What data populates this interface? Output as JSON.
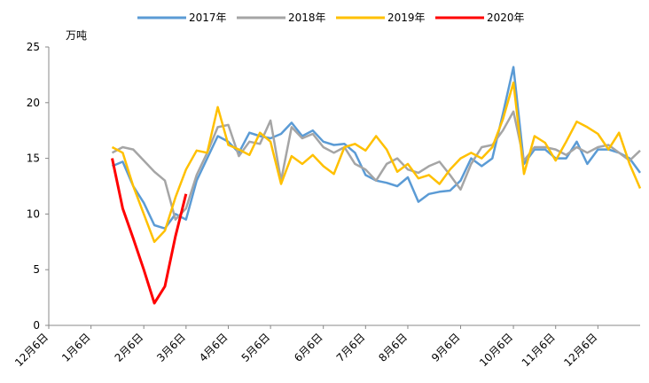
{
  "chart_data": {
    "type": "line",
    "y_unit": "万吨",
    "categories": [
      "12月6日",
      null,
      null,
      null,
      "1月6日",
      null,
      null,
      null,
      null,
      "2月6日",
      null,
      null,
      null,
      "3月6日",
      null,
      null,
      null,
      "4月6日",
      null,
      null,
      null,
      "5月6日",
      null,
      null,
      null,
      null,
      "6月6日",
      null,
      null,
      null,
      "7月6日",
      null,
      null,
      null,
      "8月6日",
      null,
      null,
      null,
      null,
      "9月6日",
      null,
      null,
      null,
      null,
      "10月6日",
      null,
      null,
      null,
      "11月6日",
      null,
      null,
      null,
      "12月6日",
      null,
      null,
      null,
      null
    ],
    "ylim": [
      0,
      25
    ],
    "yticks": [
      0,
      5,
      10,
      15,
      20,
      25
    ],
    "series": [
      {
        "name": "2017年",
        "color": "#5b9bd5",
        "values": [
          null,
          null,
          null,
          null,
          null,
          null,
          14.3,
          14.7,
          12.5,
          11,
          9,
          8.7,
          10,
          9.5,
          13,
          15,
          17,
          16.5,
          15.5,
          17.3,
          17,
          16.8,
          17.2,
          18.2,
          17,
          17.5,
          16.5,
          16.2,
          16.3,
          15.5,
          13.5,
          13,
          12.8,
          12.5,
          13.3,
          11.1,
          11.8,
          12,
          12.1,
          13,
          15,
          14.3,
          15,
          19,
          23.2,
          14.5,
          15.8,
          15.8,
          15,
          15,
          16.5,
          14.5,
          15.8,
          15.8,
          15.5,
          15,
          13.7
        ]
      },
      {
        "name": "2018年",
        "color": "#a5a5a5",
        "values": [
          null,
          null,
          null,
          null,
          null,
          null,
          15.5,
          16,
          15.8,
          14.8,
          13.8,
          13,
          9.5,
          10.5,
          13.5,
          15.5,
          17.8,
          18,
          15.2,
          16.5,
          16.3,
          18.4,
          13,
          17.8,
          16.8,
          17.2,
          16,
          15.5,
          16,
          14.5,
          14,
          13,
          14.5,
          15,
          14,
          13.7,
          14.3,
          14.7,
          13.5,
          12.2,
          14.5,
          16,
          16.2,
          17.5,
          19.2,
          14.8,
          16,
          16,
          15.8,
          15.3,
          16,
          15.5,
          16,
          16.2,
          15.5,
          14.8,
          15.7
        ]
      },
      {
        "name": "2019年",
        "color": "#ffc000",
        "values": [
          null,
          null,
          null,
          null,
          null,
          null,
          16,
          15.5,
          12.5,
          10,
          7.5,
          8.5,
          11.5,
          14,
          15.7,
          15.5,
          19.6,
          16.2,
          15.8,
          15.3,
          17.3,
          16.5,
          12.7,
          15.2,
          14.5,
          15.3,
          14.3,
          13.6,
          16,
          16.3,
          15.7,
          17,
          15.8,
          13.8,
          14.5,
          13.2,
          13.5,
          12.7,
          14,
          15,
          15.5,
          15,
          16,
          18.5,
          21.8,
          13.6,
          17,
          16.4,
          14.8,
          16.5,
          18.3,
          17.8,
          17.2,
          15.8,
          17.3,
          14.5,
          12.3
        ]
      },
      {
        "name": "2020年",
        "color": "#ff0000",
        "values": [
          null,
          null,
          null,
          null,
          null,
          null,
          15,
          10.5,
          7.8,
          5,
          2,
          3.5,
          8,
          11.8,
          null,
          null,
          null,
          null,
          null,
          null,
          null,
          null,
          null,
          null,
          null,
          null,
          null,
          null,
          null,
          null,
          null,
          null,
          null,
          null,
          null,
          null,
          null,
          null,
          null,
          null,
          null,
          null,
          null,
          null,
          null,
          null,
          null,
          null,
          null,
          null,
          null,
          null,
          null,
          null,
          null,
          null,
          null
        ]
      }
    ]
  }
}
